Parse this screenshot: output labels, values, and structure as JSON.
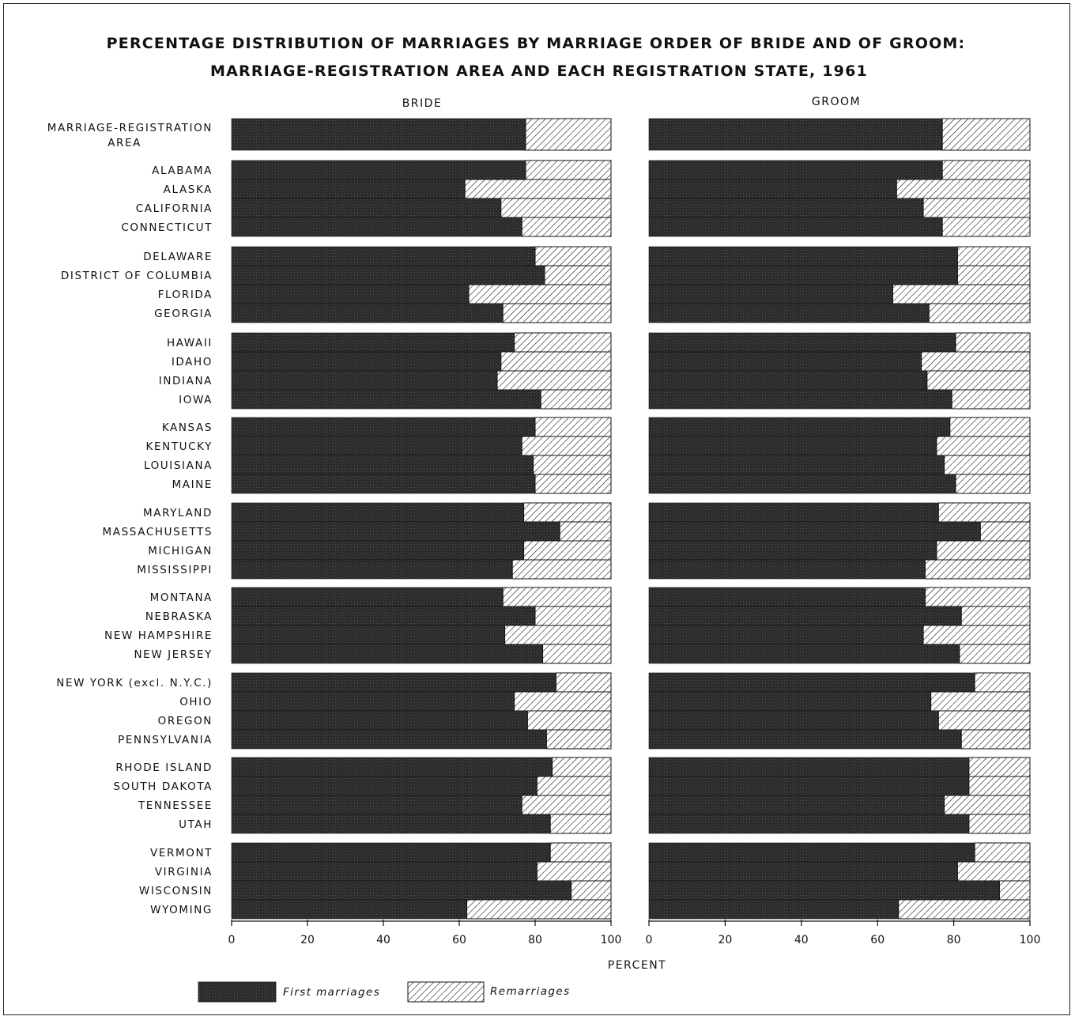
{
  "chart_data": {
    "type": "bar",
    "stacked": true,
    "orientation": "horizontal",
    "title": "PERCENTAGE DISTRIBUTION OF MARRIAGES BY MARRIAGE ORDER OF BRIDE AND OF GROOM:",
    "subtitle": "MARRIAGE-REGISTRATION AREA AND EACH REGISTRATION STATE, 1961",
    "xlabel": "PERCENT",
    "xlim": [
      0,
      100
    ],
    "xticks": [
      "0",
      "20",
      "40",
      "60",
      "80",
      "100"
    ],
    "legend": [
      {
        "label": "First marriages",
        "pattern": "dark-stipple"
      },
      {
        "label": "Remarriages",
        "pattern": "diagonal-hatch"
      }
    ],
    "legend_position": "bottom-left",
    "colors": {
      "first_marriages": "#2a2a2a",
      "remarriages_hatch": "#1a1a1a",
      "background": "#ffffff"
    },
    "categories": [
      [
        "MARRIAGE-REGISTRATION",
        "AREA"
      ],
      [
        "ALABAMA"
      ],
      [
        "ALASKA"
      ],
      [
        "CALIFORNIA"
      ],
      [
        "CONNECTICUT"
      ],
      [
        "DELAWARE"
      ],
      [
        "DISTRICT OF COLUMBIA"
      ],
      [
        "FLORIDA"
      ],
      [
        "GEORGIA"
      ],
      [
        "HAWAII"
      ],
      [
        "IDAHO"
      ],
      [
        "INDIANA"
      ],
      [
        "IOWA"
      ],
      [
        "KANSAS"
      ],
      [
        "KENTUCKY"
      ],
      [
        "LOUISIANA"
      ],
      [
        "MAINE"
      ],
      [
        "MARYLAND"
      ],
      [
        "MASSACHUSETTS"
      ],
      [
        "MICHIGAN"
      ],
      [
        "MISSISSIPPI"
      ],
      [
        "MONTANA"
      ],
      [
        "NEBRASKA"
      ],
      [
        "NEW HAMPSHIRE"
      ],
      [
        "NEW JERSEY"
      ],
      [
        "NEW YORK (excl. N.Y.C.)"
      ],
      [
        "OHIO"
      ],
      [
        "OREGON"
      ],
      [
        "PENNSYLVANIA"
      ],
      [
        "RHODE ISLAND"
      ],
      [
        "SOUTH DAKOTA"
      ],
      [
        "TENNESSEE"
      ],
      [
        "UTAH"
      ],
      [
        "VERMONT"
      ],
      [
        "VIRGINIA"
      ],
      [
        "WISCONSIN"
      ],
      [
        "WYOMING"
      ]
    ],
    "panels": [
      {
        "name": "BRIDE",
        "first_marriages": [
          77.5,
          77.5,
          61.5,
          71,
          76.5,
          80,
          82.5,
          62.5,
          71.5,
          74.5,
          71,
          70,
          81.5,
          80,
          76.5,
          79.5,
          80,
          77,
          86.5,
          77,
          74,
          71.5,
          80,
          72,
          82,
          85.5,
          74.5,
          78,
          83,
          84.5,
          80.5,
          76.5,
          84,
          84,
          80.5,
          89.5,
          62
        ]
      },
      {
        "name": "GROOM",
        "first_marriages": [
          77,
          77,
          65,
          72,
          77,
          81,
          81,
          64,
          73.5,
          80.5,
          71.5,
          73,
          79.5,
          79,
          75.5,
          77.5,
          80.5,
          76,
          87,
          75.5,
          72.5,
          72.5,
          82,
          72,
          81.5,
          85.5,
          74,
          76,
          82,
          84,
          84,
          77.5,
          84,
          85.5,
          81,
          92,
          65.5
        ]
      }
    ]
  }
}
